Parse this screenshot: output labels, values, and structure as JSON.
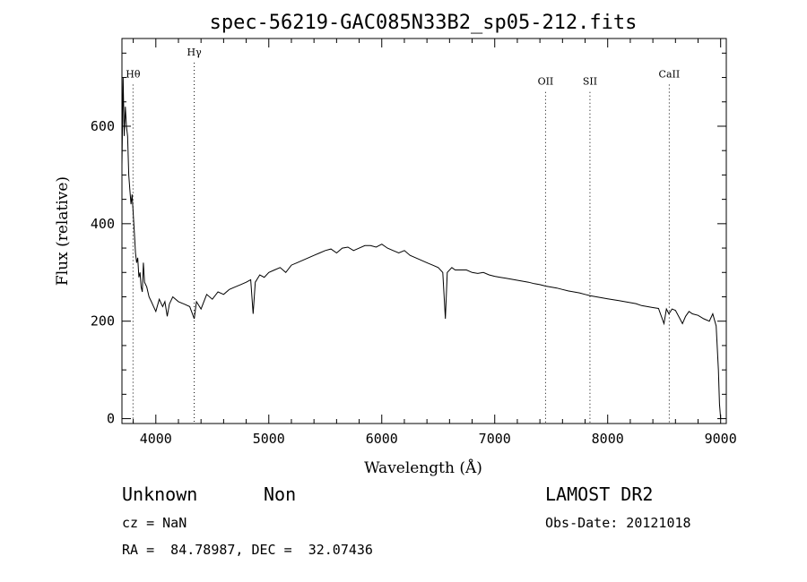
{
  "chart_data": {
    "type": "line",
    "title": "spec-56219-GAC085N33B2_sp05-212.fits",
    "xlabel": "Wavelength (Å)",
    "ylabel": "Flux (relative)",
    "xlim": [
      3700,
      9050
    ],
    "ylim": [
      -10,
      780
    ],
    "x_ticks": [
      {
        "value": 4000,
        "label": "4000"
      },
      {
        "value": 5000,
        "label": "5000"
      },
      {
        "value": 6000,
        "label": "6000"
      },
      {
        "value": 7000,
        "label": "7000"
      },
      {
        "value": 8000,
        "label": "8000"
      },
      {
        "value": 9000,
        "label": "9000"
      }
    ],
    "y_ticks": [
      {
        "value": 0,
        "label": "0"
      },
      {
        "value": 200,
        "label": "200"
      },
      {
        "value": 400,
        "label": "400"
      },
      {
        "value": 600,
        "label": "600"
      }
    ],
    "lines": [
      {
        "label": "Hθ",
        "x": 3798,
        "y": 700
      },
      {
        "label": "Hγ",
        "x": 4340,
        "y": 745
      },
      {
        "label": "OII",
        "x": 7450,
        "y": 685
      },
      {
        "label": "SII",
        "x": 7843,
        "y": 685
      },
      {
        "label": "CaII",
        "x": 8545,
        "y": 700
      }
    ],
    "series": [
      {
        "x": [
          3700,
          3710,
          3720,
          3730,
          3740,
          3750,
          3760,
          3770,
          3780,
          3790,
          3800,
          3810,
          3820,
          3830,
          3840,
          3850,
          3860,
          3870,
          3880,
          3890,
          3900,
          3920,
          3940,
          3960,
          3980,
          4000,
          4030,
          4060,
          4080,
          4101,
          4120,
          4150,
          4200,
          4250,
          4300,
          4340,
          4360,
          4400,
          4450,
          4500,
          4550,
          4600,
          4650,
          4700,
          4750,
          4800,
          4840,
          4861,
          4880,
          4920,
          4960,
          5000,
          5050,
          5100,
          5150,
          5200,
          5250,
          5300,
          5350,
          5400,
          5450,
          5500,
          5550,
          5600,
          5650,
          5700,
          5750,
          5800,
          5850,
          5900,
          5950,
          6000,
          6050,
          6100,
          6150,
          6200,
          6250,
          6300,
          6350,
          6400,
          6450,
          6500,
          6540,
          6563,
          6580,
          6620,
          6650,
          6700,
          6750,
          6800,
          6850,
          6900,
          6950,
          7000,
          7050,
          7100,
          7150,
          7200,
          7250,
          7300,
          7350,
          7400,
          7450,
          7500,
          7550,
          7600,
          7650,
          7700,
          7750,
          7800,
          7850,
          7900,
          7950,
          8000,
          8050,
          8100,
          8150,
          8200,
          8250,
          8300,
          8350,
          8400,
          8450,
          8498,
          8520,
          8542,
          8570,
          8600,
          8640,
          8662,
          8690,
          8720,
          8750,
          8800,
          8850,
          8900,
          8930,
          8960,
          8980,
          8990,
          9000
        ],
        "y": [
          520,
          700,
          580,
          640,
          600,
          580,
          500,
          470,
          440,
          460,
          420,
          380,
          340,
          320,
          330,
          290,
          300,
          270,
          260,
          320,
          280,
          270,
          250,
          240,
          230,
          220,
          245,
          230,
          240,
          210,
          235,
          250,
          240,
          235,
          230,
          205,
          240,
          225,
          255,
          245,
          260,
          255,
          265,
          270,
          275,
          280,
          285,
          215,
          280,
          295,
          290,
          300,
          305,
          310,
          300,
          315,
          320,
          325,
          330,
          335,
          340,
          345,
          348,
          340,
          350,
          352,
          345,
          350,
          355,
          355,
          352,
          358,
          350,
          345,
          340,
          345,
          335,
          330,
          325,
          320,
          315,
          310,
          300,
          205,
          300,
          310,
          305,
          305,
          305,
          300,
          298,
          300,
          295,
          292,
          290,
          288,
          286,
          284,
          282,
          280,
          277,
          275,
          272,
          270,
          268,
          265,
          262,
          260,
          258,
          255,
          252,
          250,
          248,
          246,
          244,
          242,
          240,
          238,
          236,
          232,
          230,
          228,
          226,
          195,
          225,
          215,
          225,
          222,
          205,
          195,
          210,
          220,
          215,
          212,
          205,
          200,
          215,
          190,
          100,
          30,
          0
        ]
      }
    ]
  },
  "info": {
    "object_class": "Unknown",
    "object_subclass": "Non",
    "survey": "LAMOST DR2",
    "redshift": "cz = NaN",
    "obs_date": "Obs-Date: 20121018",
    "coords": "RA =  84.78987, DEC =  32.07436"
  }
}
